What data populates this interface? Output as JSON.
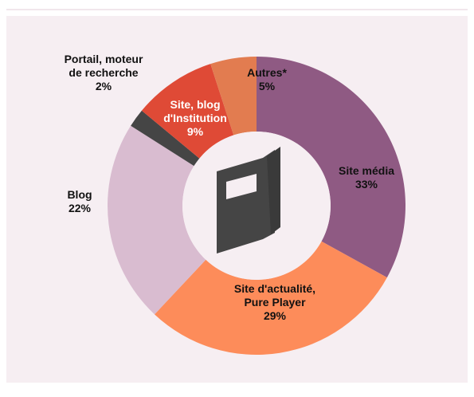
{
  "chart_data": {
    "type": "donut",
    "categories": [
      "Site média",
      "Site d'actualité, Pure Player",
      "Blog",
      "Portail, moteur de recherche",
      "Site, blog d'Institution",
      "Autres*"
    ],
    "values": [
      33,
      29,
      22,
      2,
      9,
      5
    ],
    "value_labels": [
      "33%",
      "29%",
      "22%",
      "2%",
      "9%",
      "5%"
    ],
    "colors": [
      "#8f5a83",
      "#fd8c5a",
      "#d9bcd0",
      "#454545",
      "#df4a36",
      "#e27c50"
    ]
  }
}
